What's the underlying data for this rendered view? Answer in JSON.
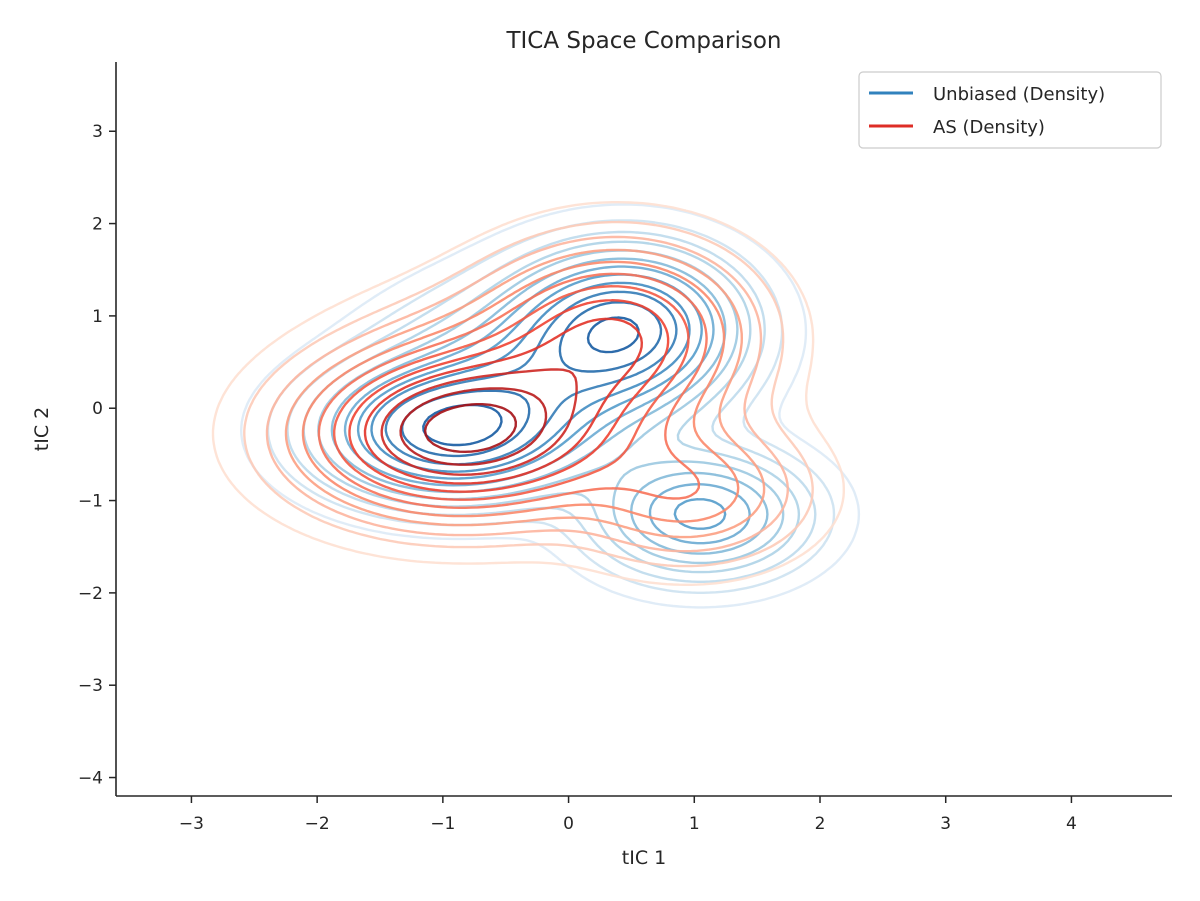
{
  "chart_data": {
    "type": "contour",
    "title": "TICA Space Comparison",
    "xlabel": "tIC 1",
    "ylabel": "tIC 2",
    "xlim": [
      -3.6,
      4.8
    ],
    "ylim": [
      -4.2,
      3.75
    ],
    "xticks": [
      -3,
      -2,
      -1,
      0,
      1,
      2,
      3,
      4
    ],
    "yticks": [
      -4,
      -3,
      -2,
      -1,
      0,
      1,
      2,
      3
    ],
    "xtick_labels": [
      "−3",
      "−2",
      "−1",
      "0",
      "1",
      "2",
      "3",
      "4"
    ],
    "ytick_labels": [
      "−4",
      "−3",
      "−2",
      "−1",
      "0",
      "1",
      "2",
      "3"
    ],
    "grid": false,
    "legend_position": "top-right",
    "series": [
      {
        "name": "Unbiased (Density)",
        "color": "#3182bd",
        "colormap": "Blues",
        "components": [
          {
            "x": -0.95,
            "y": -0.25,
            "sx": 0.6,
            "sy": 0.42,
            "w": 1.0
          },
          {
            "x": 0.45,
            "y": 0.9,
            "sx": 0.52,
            "sy": 0.48,
            "w": 0.9
          },
          {
            "x": 1.05,
            "y": -1.15,
            "sx": 0.5,
            "sy": 0.4,
            "w": 0.55
          },
          {
            "x": -0.2,
            "y": 0.35,
            "sx": 0.7,
            "sy": 0.55,
            "w": 0.45
          }
        ],
        "levels": [
          0.02,
          0.05,
          0.09,
          0.14,
          0.2,
          0.27,
          0.35,
          0.44,
          0.54,
          0.65,
          0.77,
          0.9
        ]
      },
      {
        "name": "AS (Density)",
        "color": "#de2d26",
        "colormap": "Reds",
        "components": [
          {
            "x": -0.9,
            "y": -0.3,
            "sx": 0.7,
            "sy": 0.5,
            "w": 1.0
          },
          {
            "x": 0.4,
            "y": 0.85,
            "sx": 0.6,
            "sy": 0.55,
            "w": 0.55
          },
          {
            "x": 0.95,
            "y": -0.9,
            "sx": 0.55,
            "sy": 0.45,
            "w": 0.3
          },
          {
            "x": -0.3,
            "y": 0.2,
            "sx": 0.8,
            "sy": 0.6,
            "w": 0.35
          }
        ],
        "levels": [
          0.02,
          0.05,
          0.09,
          0.14,
          0.2,
          0.27,
          0.35,
          0.44,
          0.54,
          0.65,
          0.77,
          0.9
        ]
      }
    ]
  }
}
